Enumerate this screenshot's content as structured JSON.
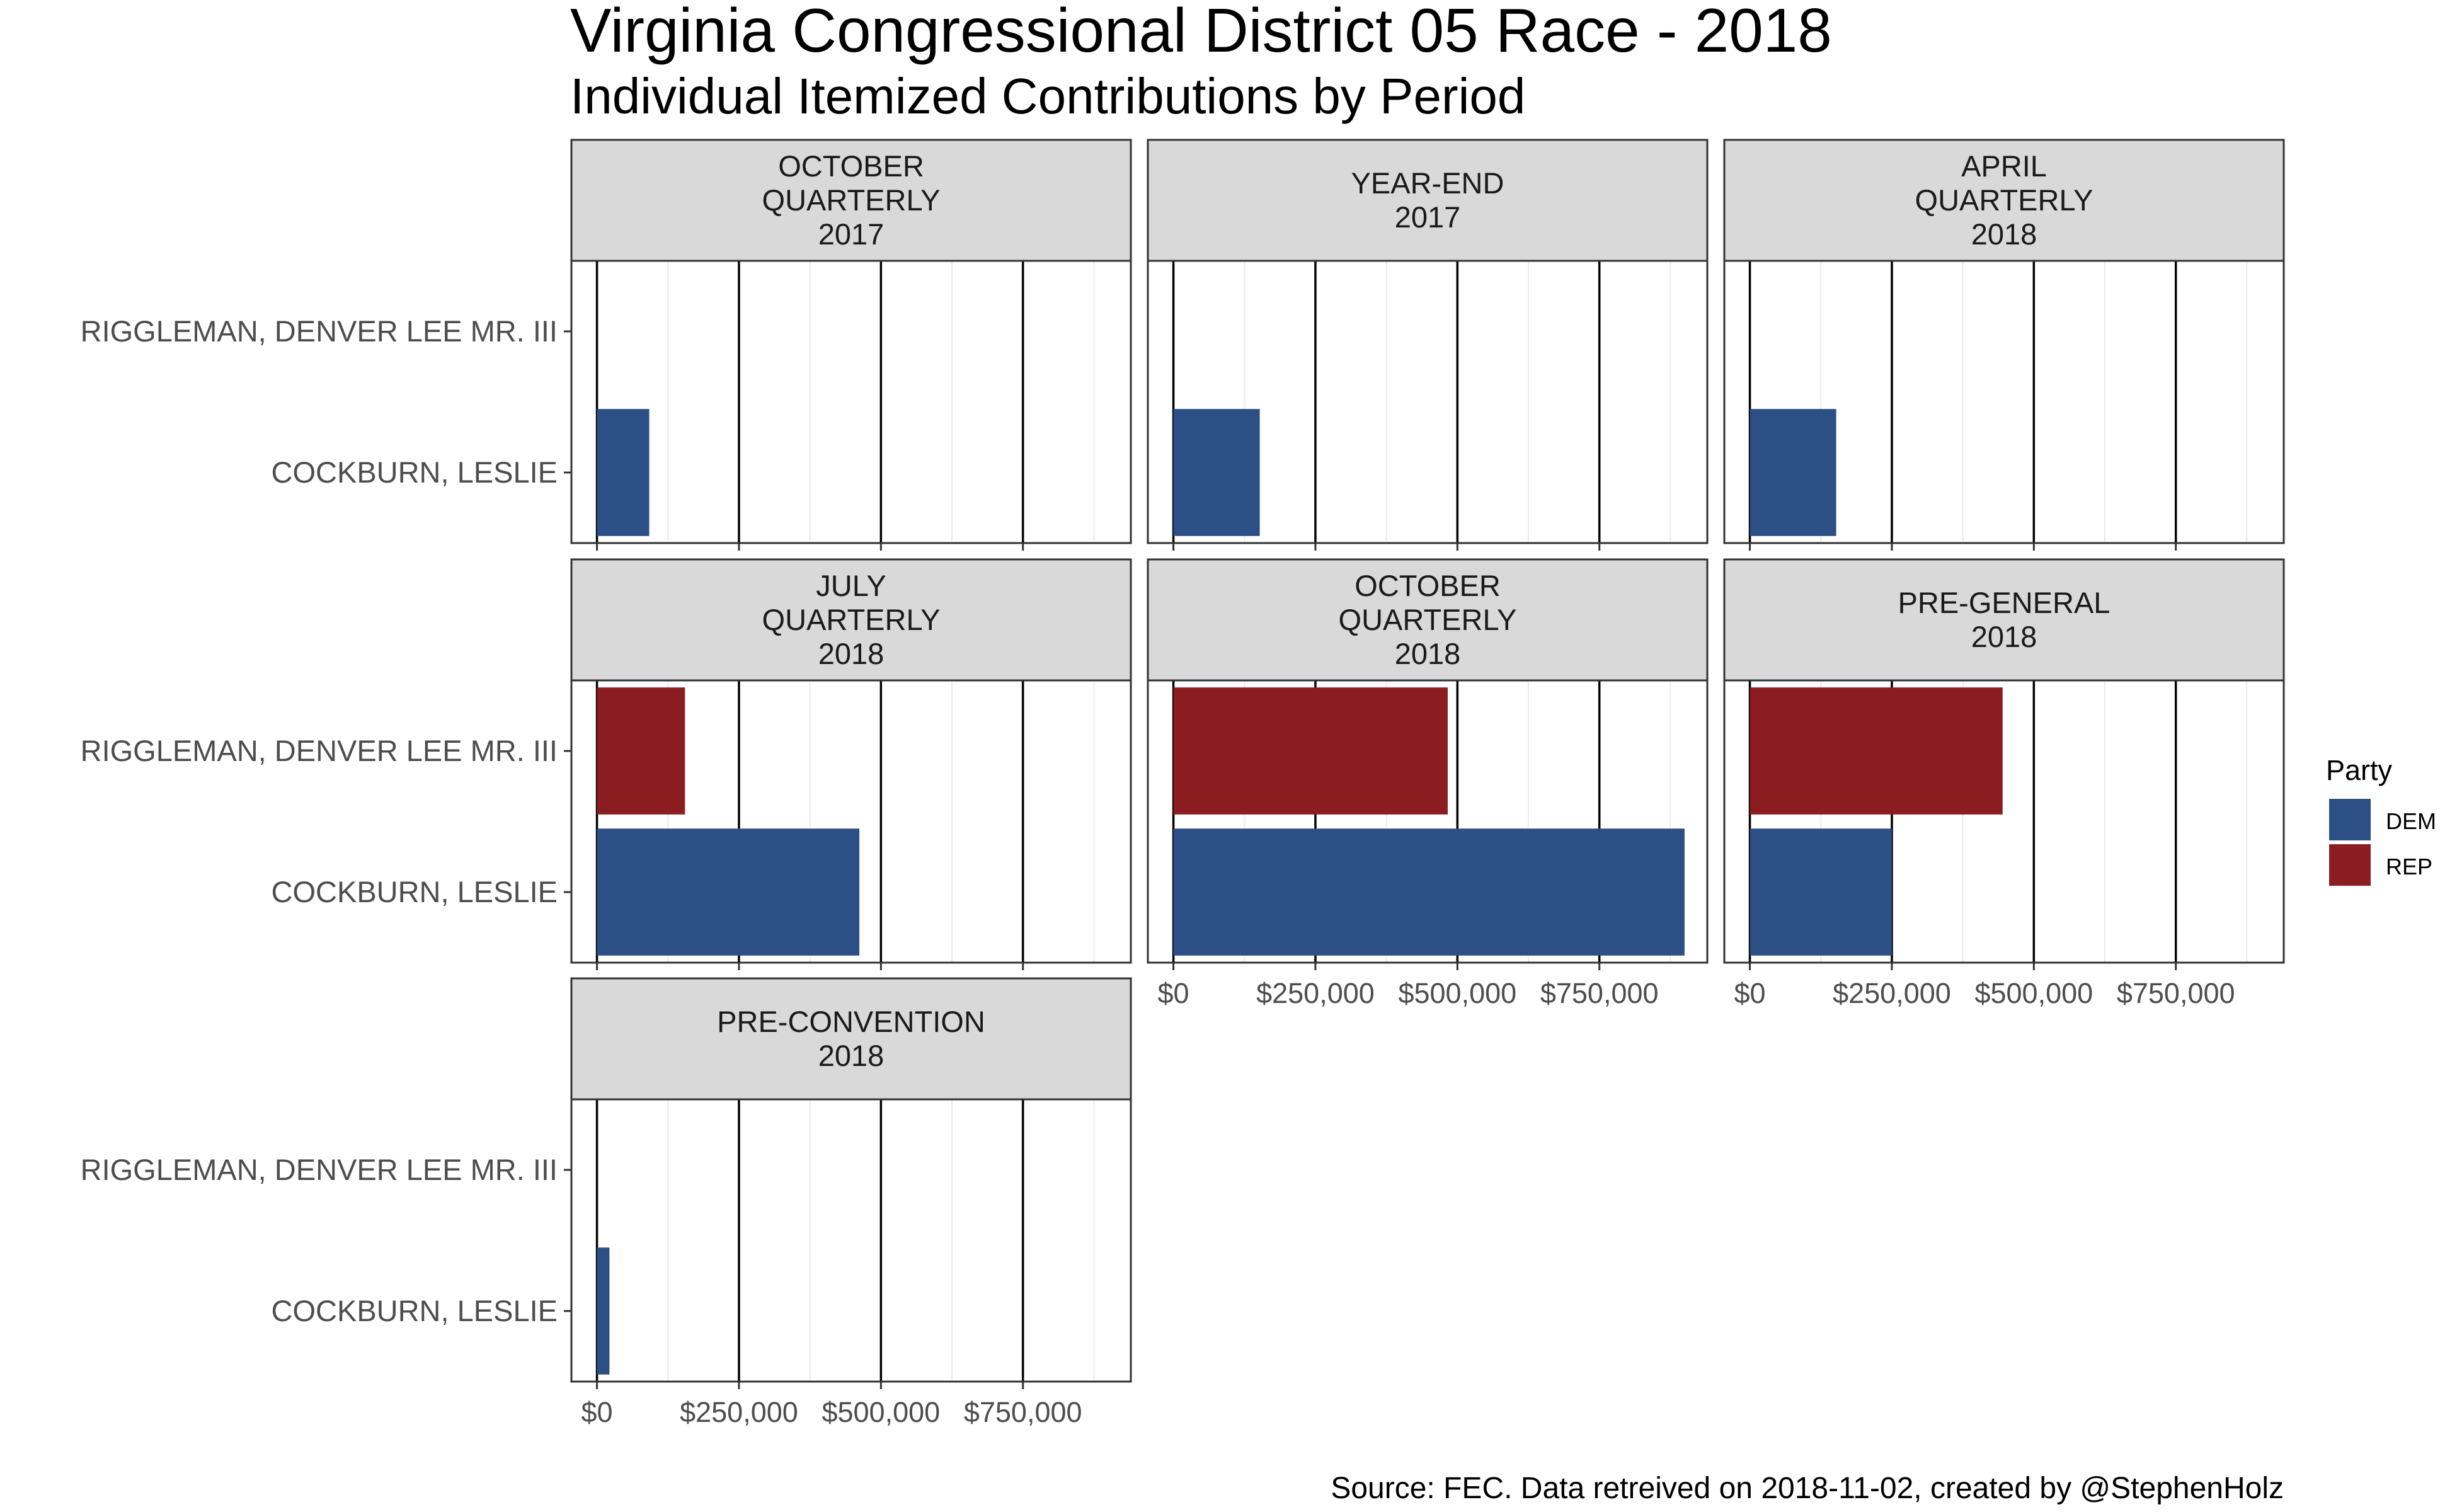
{
  "chart_data": {
    "type": "bar",
    "orientation": "horizontal",
    "title": "Virginia Congressional District 05 Race - 2018",
    "subtitle": "Individual Itemized Contributions by Period",
    "caption": "Source: FEC. Data retreived on 2018-11-02, created by @StephenHolz",
    "categories": [
      "RIGGLEMAN, DENVER LEE MR. III",
      "COCKBURN, LESLIE"
    ],
    "x_ticks": [
      0,
      250000,
      500000,
      750000
    ],
    "x_tick_labels": [
      "$0",
      "$250,000",
      "$500,000",
      "$750,000"
    ],
    "xlim": [
      -45000,
      940000
    ],
    "grid": true,
    "legend": {
      "title": "Party",
      "position": "right",
      "items": [
        {
          "label": "DEM",
          "color": "#2c4f85"
        },
        {
          "label": "REP",
          "color": "#8b1c1f"
        }
      ]
    },
    "facets": [
      {
        "label": [
          "OCTOBER",
          "QUARTERLY",
          "2017"
        ],
        "bars": [
          {
            "candidate": "COCKBURN, LESLIE",
            "party": "DEM",
            "value": 92000
          }
        ],
        "show_x_axis": false
      },
      {
        "label": [
          "YEAR-END",
          "2017"
        ],
        "bars": [
          {
            "candidate": "COCKBURN, LESLIE",
            "party": "DEM",
            "value": 152000
          }
        ],
        "show_x_axis": false
      },
      {
        "label": [
          "APRIL",
          "QUARTERLY",
          "2018"
        ],
        "bars": [
          {
            "candidate": "COCKBURN, LESLIE",
            "party": "DEM",
            "value": 152000
          }
        ],
        "show_x_axis": false
      },
      {
        "label": [
          "JULY",
          "QUARTERLY",
          "2018"
        ],
        "bars": [
          {
            "candidate": "RIGGLEMAN, DENVER LEE MR. III",
            "party": "REP",
            "value": 155000
          },
          {
            "candidate": "COCKBURN, LESLIE",
            "party": "DEM",
            "value": 462000
          }
        ],
        "show_x_axis": false
      },
      {
        "label": [
          "OCTOBER",
          "QUARTERLY",
          "2018"
        ],
        "bars": [
          {
            "candidate": "RIGGLEMAN, DENVER LEE MR. III",
            "party": "REP",
            "value": 483000
          },
          {
            "candidate": "COCKBURN, LESLIE",
            "party": "DEM",
            "value": 900000
          }
        ],
        "show_x_axis": true
      },
      {
        "label": [
          "PRE-GENERAL",
          "2018"
        ],
        "bars": [
          {
            "candidate": "RIGGLEMAN, DENVER LEE MR. III",
            "party": "REP",
            "value": 445000
          },
          {
            "candidate": "COCKBURN, LESLIE",
            "party": "DEM",
            "value": 250000
          }
        ],
        "show_x_axis": true
      },
      {
        "label": [
          "PRE-CONVENTION",
          "2018"
        ],
        "bars": [
          {
            "candidate": "COCKBURN, LESLIE",
            "party": "DEM",
            "value": 22000
          }
        ],
        "show_x_axis": true
      }
    ]
  }
}
